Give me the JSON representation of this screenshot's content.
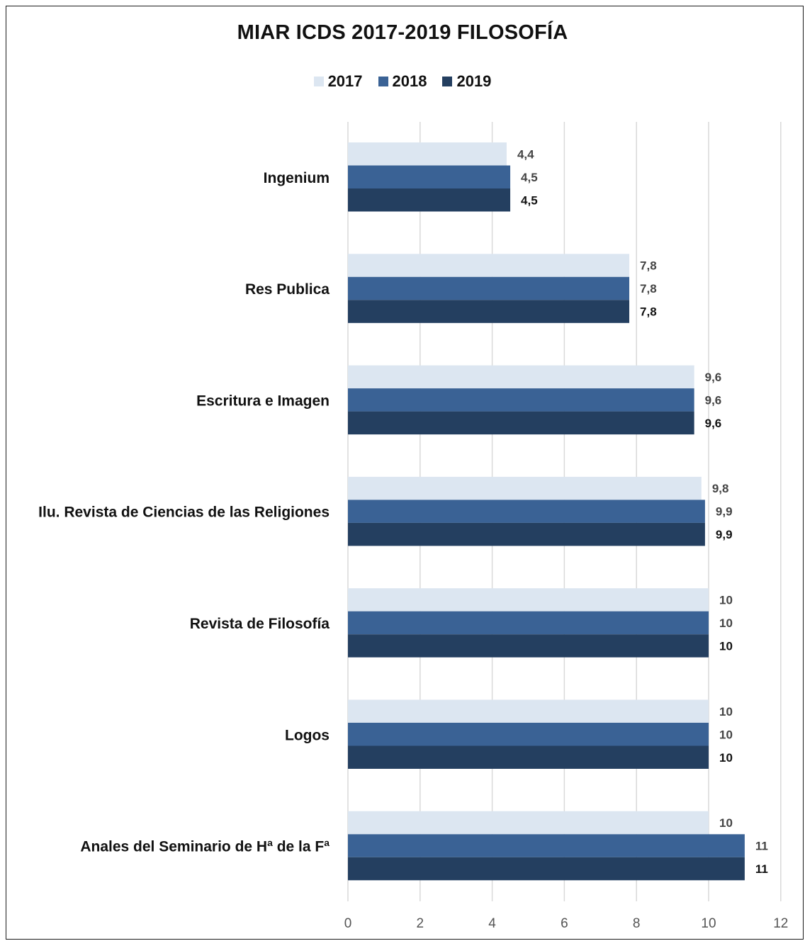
{
  "chart_data": {
    "type": "bar",
    "orientation": "horizontal",
    "title": "MIAR ICDS 2017-2019 FILOSOFÍA",
    "categories": [
      "Ingenium",
      "Res Publica",
      "Escritura e Imagen",
      "Ilu. Revista de Ciencias de las Religiones",
      "Revista de Filosofía",
      "Logos",
      "Anales del Seminario de Hª de la Fª"
    ],
    "series": [
      {
        "name": "2017",
        "color": "#dce6f1",
        "label_color": "#444444",
        "values": [
          4.4,
          7.8,
          9.6,
          9.8,
          10,
          10,
          10
        ],
        "labels": [
          "4,4",
          "7,8",
          "9,6",
          "9,8",
          "10",
          "10",
          "10"
        ]
      },
      {
        "name": "2018",
        "color": "#3a6295",
        "label_color": "#444444",
        "values": [
          4.5,
          7.8,
          9.6,
          9.9,
          10,
          10,
          11
        ],
        "labels": [
          "4,5",
          "7,8",
          "9,6",
          "9,9",
          "10",
          "10",
          "11"
        ]
      },
      {
        "name": "2019",
        "color": "#243f60",
        "label_color": "#111111",
        "values": [
          4.5,
          7.8,
          9.6,
          9.9,
          10,
          10,
          11
        ],
        "labels": [
          "4,5",
          "7,8",
          "9,6",
          "9,9",
          "10",
          "10",
          "11"
        ]
      }
    ],
    "xlim": [
      0,
      12
    ],
    "xticks": [
      "0",
      "2",
      "4",
      "6",
      "8",
      "10",
      "12"
    ],
    "grid": true,
    "legend_position": "top"
  }
}
